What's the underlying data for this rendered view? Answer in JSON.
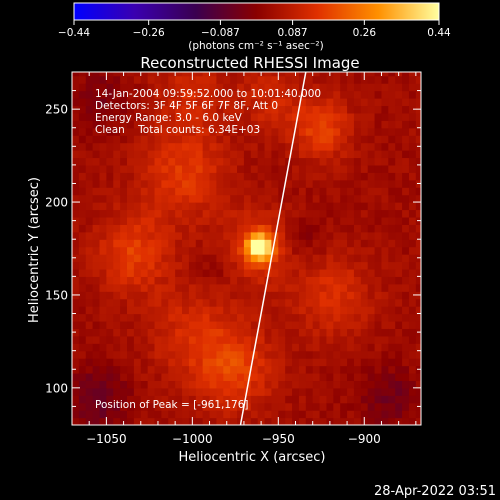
{
  "chart_data": {
    "type": "heatmap",
    "title": "Reconstructed RHESSI Image",
    "xlabel": "Heliocentric X (arcsec)",
    "ylabel": "Heliocentric Y (arcsec)",
    "xlim": [
      -1070,
      -867
    ],
    "ylim": [
      80,
      270
    ],
    "xticks": [
      -1050,
      -1000,
      -950,
      -900
    ],
    "yticks": [
      100,
      150,
      200,
      250
    ],
    "xtick_labels": [
      "−1050",
      "−1000",
      "−950",
      "−900"
    ],
    "ytick_labels": [
      "100",
      "150",
      "200",
      "250"
    ],
    "colorbar": {
      "range": [
        -0.44,
        0.44
      ],
      "ticks": [
        -0.44,
        -0.26,
        -0.087,
        0.087,
        0.26,
        0.44
      ],
      "tick_labels": [
        "−0.44",
        "−0.26",
        "−0.087",
        "0.087",
        "0.26",
        "0.44"
      ],
      "unit_label": "(photons cm⁻² s⁻¹ asec⁻²)",
      "colors": [
        "#0000ff",
        "#3a00b0",
        "#3a0050",
        "#8a0000",
        "#e03000",
        "#ff9000",
        "#ffffa0"
      ]
    },
    "annotations": [
      "14-Jan-2004 09:59:52.000 to 10:01:40.000",
      "Detectors: 3F 4F 5F 6F 7F 8F, Att 0",
      "Energy Range: 3.0 - 6.0 keV",
      "Clean    Total counts: 6.34E+03"
    ],
    "peak_label": "Position of Peak = [-961,176]",
    "peak": {
      "x": -961,
      "y": 176,
      "value": 0.44
    },
    "sources": [
      {
        "x": -961,
        "y": 176,
        "amp": 0.42,
        "sigma": 5
      },
      {
        "x": -961,
        "y": 176,
        "amp": 0.12,
        "sigma": 14
      },
      {
        "x": -1035,
        "y": 172,
        "amp": 0.13,
        "sigma": 15
      },
      {
        "x": -1005,
        "y": 215,
        "amp": 0.12,
        "sigma": 18
      },
      {
        "x": -925,
        "y": 240,
        "amp": 0.14,
        "sigma": 12
      },
      {
        "x": -918,
        "y": 150,
        "amp": 0.1,
        "sigma": 16
      },
      {
        "x": -975,
        "y": 110,
        "amp": 0.13,
        "sigma": 16
      },
      {
        "x": -1000,
        "y": 130,
        "amp": 0.09,
        "sigma": 18
      },
      {
        "x": -1000,
        "y": 260,
        "amp": 0.08,
        "sigma": 15
      },
      {
        "x": -955,
        "y": 255,
        "amp": 0.08,
        "sigma": 12
      },
      {
        "x": -1055,
        "y": 95,
        "amp": -0.1,
        "sigma": 12
      },
      {
        "x": -885,
        "y": 95,
        "amp": -0.08,
        "sigma": 12
      },
      {
        "x": -1055,
        "y": 255,
        "amp": -0.06,
        "sigma": 12
      },
      {
        "x": -935,
        "y": 180,
        "amp": -0.05,
        "sigma": 9
      },
      {
        "x": -985,
        "y": 165,
        "amp": -0.04,
        "sigma": 8
      }
    ],
    "limb_curve": {
      "points": [
        [
          -972,
          80
        ],
        [
          -962,
          130
        ],
        [
          -952,
          180
        ],
        [
          -942,
          230
        ],
        [
          -934,
          270
        ]
      ]
    },
    "grid": false
  },
  "timestamp": "28-Apr-2022 03:51"
}
